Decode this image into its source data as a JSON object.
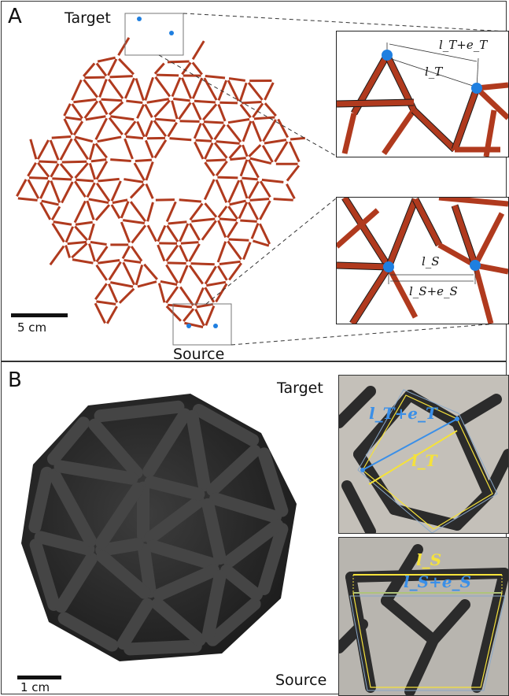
{
  "panel_a": {
    "label": "A",
    "target_label": "Target",
    "source_label": "Source",
    "scale_label": "5 cm",
    "inset_top": {
      "label_long": "l_T+e_T",
      "label_short": "l_T"
    },
    "inset_bottom": {
      "label_short": "l_S",
      "label_long": "l_S+e_S"
    }
  },
  "panel_b": {
    "label": "B",
    "target_label": "Target",
    "source_label": "Source",
    "scale_label": "1 cm",
    "target_inset": {
      "label_long": "l_T+e_T",
      "label_short": "l_T"
    },
    "source_inset": {
      "label_short": "l_S",
      "label_long": "l_S+e_S"
    }
  },
  "colors": {
    "network_red": "#b03a1e",
    "node_blue": "#1f7fe0",
    "photo_blue": "#3a8fe8",
    "photo_yellow": "#f5e23a",
    "print_black": "#2b2b2b"
  }
}
